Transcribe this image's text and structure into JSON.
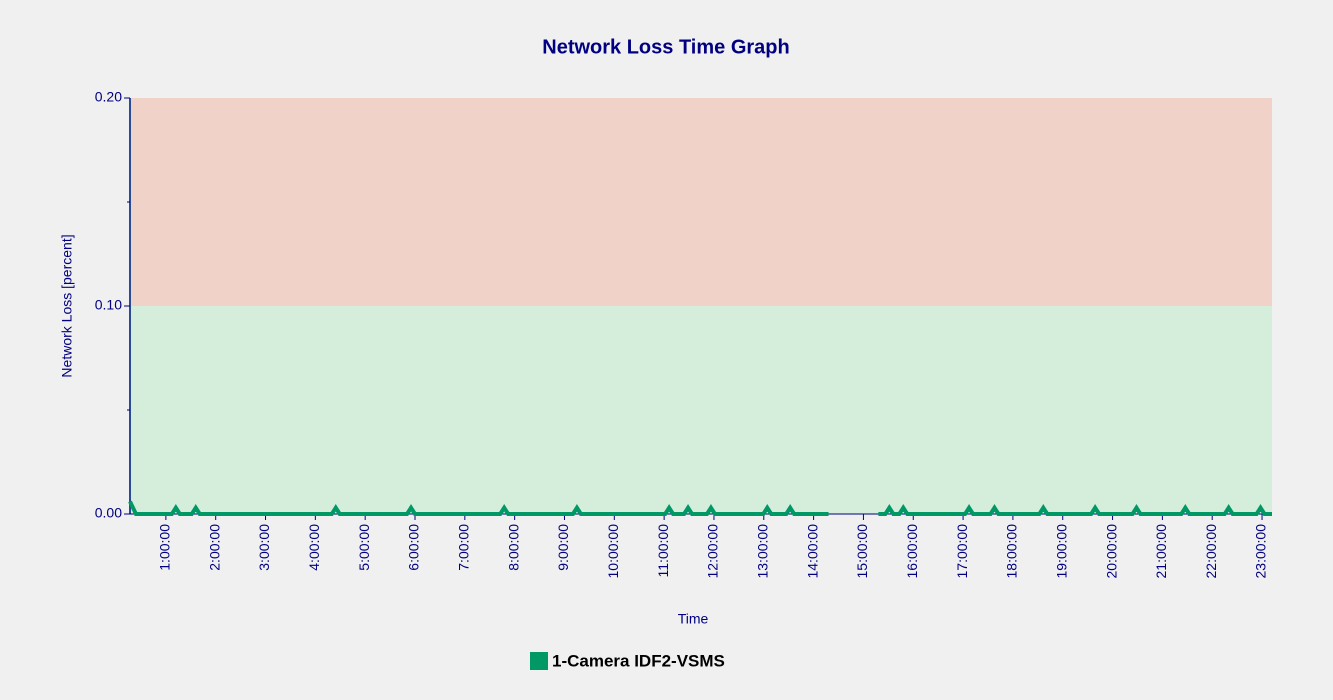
{
  "chart_data": {
    "type": "line",
    "title": "Network Loss Time Graph",
    "x_label": "Time",
    "y_label": "Network Loss [percent]",
    "xlim": [
      0.28,
      23.2
    ],
    "ylim": [
      0,
      0.2
    ],
    "yticks": [
      {
        "value": 0,
        "label": "0.00"
      },
      {
        "value": 0.1,
        "label": "0.10"
      },
      {
        "value": 0.2,
        "label": "0.20"
      }
    ],
    "yminor": [
      0.05,
      0.15
    ],
    "xticks": [
      {
        "value": 1,
        "label": "1:00:00"
      },
      {
        "value": 2,
        "label": "2:00:00"
      },
      {
        "value": 3,
        "label": "3:00:00"
      },
      {
        "value": 4,
        "label": "4:00:00"
      },
      {
        "value": 5,
        "label": "5:00:00"
      },
      {
        "value": 6,
        "label": "6:00:00"
      },
      {
        "value": 7,
        "label": "7:00:00"
      },
      {
        "value": 8,
        "label": "8:00:00"
      },
      {
        "value": 9,
        "label": "9:00:00"
      },
      {
        "value": 10,
        "label": "10:00:00"
      },
      {
        "value": 11,
        "label": "11:00:00"
      },
      {
        "value": 12,
        "label": "12:00:00"
      },
      {
        "value": 13,
        "label": "13:00:00"
      },
      {
        "value": 14,
        "label": "14:00:00"
      },
      {
        "value": 15,
        "label": "15:00:00"
      },
      {
        "value": 16,
        "label": "16:00:00"
      },
      {
        "value": 17,
        "label": "17:00:00"
      },
      {
        "value": 18,
        "label": "18:00:00"
      },
      {
        "value": 19,
        "label": "19:00:00"
      },
      {
        "value": 20,
        "label": "20:00:00"
      },
      {
        "value": 21,
        "label": "21:00:00"
      },
      {
        "value": 22,
        "label": "22:00:00"
      },
      {
        "value": 23,
        "label": "23:00:00"
      }
    ],
    "bands": [
      {
        "from": 0,
        "to": 0.1,
        "color": "#d5eedb"
      },
      {
        "from": 0.1,
        "to": 0.2,
        "color": "#f0d2c9"
      }
    ],
    "legend": "bottom",
    "x": [
      0.28,
      0.4,
      1.12,
      1.2,
      1.28,
      1.52,
      1.6,
      1.68,
      4.33,
      4.41,
      4.49,
      5.84,
      5.92,
      6.0,
      7.71,
      7.79,
      7.87,
      9.17,
      9.25,
      9.33,
      11.02,
      11.1,
      11.18,
      11.4,
      11.48,
      11.56,
      11.86,
      11.94,
      12.02,
      12.99,
      13.07,
      13.15,
      13.45,
      13.53,
      13.61,
      14.3,
      14.8,
      15.3,
      15.44,
      15.52,
      15.6,
      15.72,
      15.8,
      15.88,
      17.04,
      17.12,
      17.2,
      17.55,
      17.63,
      17.71,
      18.53,
      18.61,
      18.69,
      19.57,
      19.65,
      19.73,
      20.4,
      20.48,
      20.56,
      21.38,
      21.46,
      21.54,
      22.25,
      22.33,
      22.41,
      22.89,
      22.97,
      23.05,
      23.2
    ],
    "series": [
      {
        "name": "1-Camera IDF2-VSMS",
        "color": "#009966",
        "values": [
          0.006,
          0,
          0,
          0.003,
          0,
          0,
          0.003,
          0,
          0,
          0.003,
          0,
          0,
          0.003,
          0,
          0,
          0.003,
          0,
          0,
          0.003,
          0,
          0,
          0.003,
          0,
          0,
          0.003,
          0,
          0,
          0.003,
          0,
          0,
          0.003,
          0,
          0,
          0.003,
          0,
          0,
          null,
          0,
          0,
          0.003,
          0,
          0,
          0.003,
          0,
          0,
          0.003,
          0,
          0,
          0.003,
          0,
          0,
          0.003,
          0,
          0,
          0.003,
          0,
          0,
          0.003,
          0,
          0,
          0.003,
          0,
          0,
          0.003,
          0,
          0,
          0.003,
          0,
          0
        ]
      }
    ]
  }
}
